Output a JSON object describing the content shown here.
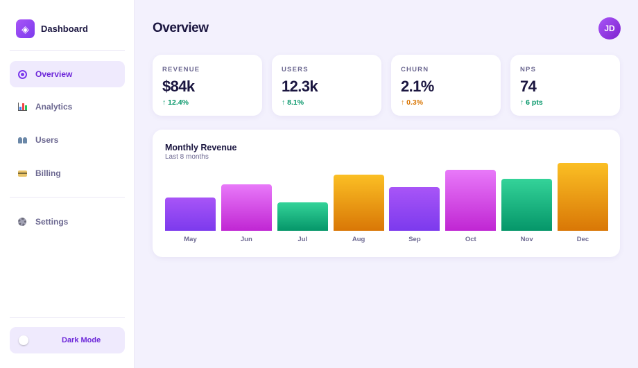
{
  "sidebar": {
    "brand": {
      "title": "Dashboard",
      "logo_glyph": "◈"
    },
    "items": [
      {
        "label": "Overview",
        "icon": "overview-icon",
        "active": true
      },
      {
        "label": "Analytics",
        "icon": "bar-chart-icon",
        "active": false
      },
      {
        "label": "Users",
        "icon": "users-icon",
        "active": false
      },
      {
        "label": "Billing",
        "icon": "credit-card-icon",
        "active": false
      },
      {
        "label": "Settings",
        "icon": "gear-icon",
        "active": false
      }
    ],
    "dark_mode": {
      "label": "Dark Mode",
      "enabled": false
    }
  },
  "header": {
    "title": "Overview",
    "avatar_initials": "JD"
  },
  "stats": [
    {
      "label": "REVENUE",
      "value": "$84k",
      "delta": "↑ 12.4%",
      "delta_color": "#059669"
    },
    {
      "label": "USERS",
      "value": "12.3k",
      "delta": "↑ 8.1%",
      "delta_color": "#059669"
    },
    {
      "label": "CHURN",
      "value": "2.1%",
      "delta": "↑ 0.3%",
      "delta_color": "#d97706"
    },
    {
      "label": "NPS",
      "value": "74",
      "delta": "↑ 6 pts",
      "delta_color": "#059669"
    }
  ],
  "chart_data": {
    "type": "bar",
    "title": "Monthly Revenue",
    "subtitle": "Last 8 months",
    "categories": [
      "May",
      "Jun",
      "Jul",
      "Aug",
      "Sep",
      "Oct",
      "Nov",
      "Dec"
    ],
    "values": [
      49,
      68,
      42,
      83,
      64,
      90,
      77,
      100
    ],
    "ylim": [
      0,
      100
    ],
    "grid": false,
    "bar_gradients": [
      [
        "#a855f7",
        "#7c3aed"
      ],
      [
        "#e879f9",
        "#c026d3"
      ],
      [
        "#34d399",
        "#059669"
      ],
      [
        "#fbbf24",
        "#d97706"
      ],
      [
        "#a855f7",
        "#7c3aed"
      ],
      [
        "#e879f9",
        "#c026d3"
      ],
      [
        "#34d399",
        "#059669"
      ],
      [
        "#fbbf24",
        "#d97706"
      ]
    ]
  }
}
